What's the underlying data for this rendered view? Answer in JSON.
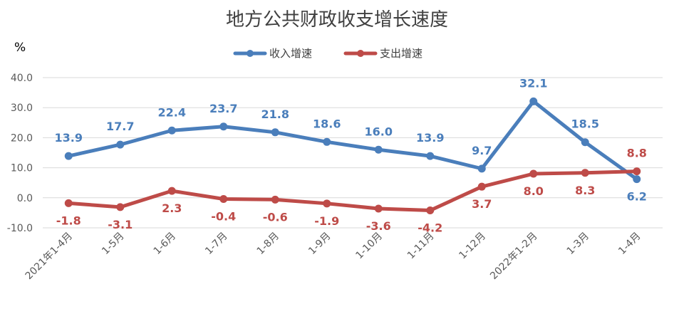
{
  "chart_data": {
    "type": "line",
    "title": "地方公共财政收支增长速度",
    "ylabel": "%",
    "xlabel": "",
    "ylim": [
      -10,
      40
    ],
    "yticks": [
      "-10.0",
      "0.0",
      "10.0",
      "20.0",
      "30.0",
      "40.0"
    ],
    "categories": [
      "2021年1-4月",
      "1-5月",
      "1-6月",
      "1-7月",
      "1-8月",
      "1-9月",
      "1-10月",
      "1-11月",
      "1-12月",
      "2022年1-2月",
      "1-3月",
      "1-4月"
    ],
    "grid": true,
    "legend_position": "top-center",
    "series": [
      {
        "name": "收入增速",
        "color": "#4a7ebb",
        "values": [
          13.9,
          17.7,
          22.4,
          23.7,
          21.8,
          18.6,
          16.0,
          13.9,
          9.7,
          32.1,
          18.5,
          6.2
        ],
        "labels": [
          "13.9",
          "17.7",
          "22.4",
          "23.7",
          "21.8",
          "18.6",
          "16.0",
          "13.9",
          "9.7",
          "32.1",
          "18.5",
          "6.2"
        ]
      },
      {
        "name": "支出增速",
        "color": "#be4b48",
        "values": [
          -1.8,
          -3.1,
          2.3,
          -0.4,
          -0.6,
          -1.9,
          -3.6,
          -4.2,
          3.7,
          8.0,
          8.3,
          8.8
        ],
        "labels": [
          "-1.8",
          "-3.1",
          "2.3",
          "-0.4",
          "-0.6",
          "-1.9",
          "-3.6",
          "-4.2",
          "3.7",
          "8.0",
          "8.3",
          "8.8"
        ]
      }
    ]
  }
}
